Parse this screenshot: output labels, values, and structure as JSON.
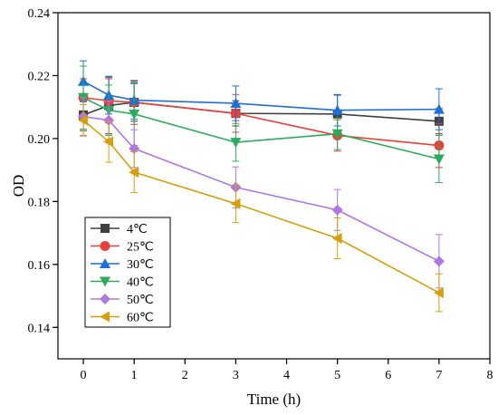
{
  "chart_data": {
    "type": "line",
    "title": "",
    "xlabel": "Time (h)",
    "ylabel": "OD",
    "xlim": [
      -0.5,
      8
    ],
    "ylim": [
      0.13,
      0.24
    ],
    "xticks": [
      0,
      1,
      2,
      3,
      4,
      5,
      6,
      7,
      8
    ],
    "yticks": [
      0.14,
      0.16,
      0.18,
      0.2,
      0.22,
      0.24
    ],
    "ytick_labels": [
      "0.14",
      "0.16",
      "0.18",
      "0.20",
      "0.22",
      "0.24"
    ],
    "grid": false,
    "legend_position": "lower-left",
    "series": [
      {
        "name": "4℃",
        "color": "#404040",
        "marker": "square",
        "x": [
          0,
          0.5,
          1,
          3,
          5,
          7
        ],
        "y": [
          0.2075,
          0.2105,
          0.2115,
          0.208,
          0.2078,
          0.2055
        ],
        "err": [
          0.005,
          0.009,
          0.006,
          0.004,
          0.006,
          0.004
        ]
      },
      {
        "name": "25℃",
        "color": "#e8403a",
        "marker": "circle",
        "x": [
          0,
          0.5,
          1,
          3,
          5,
          7
        ],
        "y": [
          0.213,
          0.212,
          0.2115,
          0.208,
          0.201,
          0.1978
        ],
        "err": [
          0.006,
          0.007,
          0.007,
          0.006,
          0.005,
          0.007
        ]
      },
      {
        "name": "30℃",
        "color": "#1f6fd6",
        "marker": "triangle-up",
        "x": [
          0,
          0.5,
          1,
          3,
          5,
          7
        ],
        "y": [
          0.2182,
          0.2138,
          0.2122,
          0.2112,
          0.209,
          0.2093
        ],
        "err": [
          0.0065,
          0.006,
          0.006,
          0.0055,
          0.005,
          0.0065
        ]
      },
      {
        "name": "40℃",
        "color": "#2eaa5c",
        "marker": "triangle-down",
        "x": [
          0,
          0.5,
          1,
          3,
          5,
          7
        ],
        "y": [
          0.213,
          0.209,
          0.2078,
          0.1988,
          0.2015,
          0.1935
        ],
        "err": [
          0.01,
          0.008,
          0.01,
          0.006,
          0.005,
          0.0075
        ]
      },
      {
        "name": "50℃",
        "color": "#b176e2",
        "marker": "diamond",
        "x": [
          0,
          0.5,
          1,
          3,
          5,
          7
        ],
        "y": [
          0.207,
          0.2058,
          0.1968,
          0.1845,
          0.1773,
          0.161
        ],
        "err": [
          0.006,
          0.006,
          0.006,
          0.0065,
          0.0065,
          0.0085
        ]
      },
      {
        "name": "60℃",
        "color": "#d4a010",
        "marker": "triangle-left",
        "x": [
          0,
          0.5,
          1,
          3,
          5,
          7
        ],
        "y": [
          0.2058,
          0.199,
          0.1893,
          0.1793,
          0.1683,
          0.151
        ],
        "err": [
          0.005,
          0.0065,
          0.0065,
          0.006,
          0.0065,
          0.006
        ]
      }
    ]
  }
}
